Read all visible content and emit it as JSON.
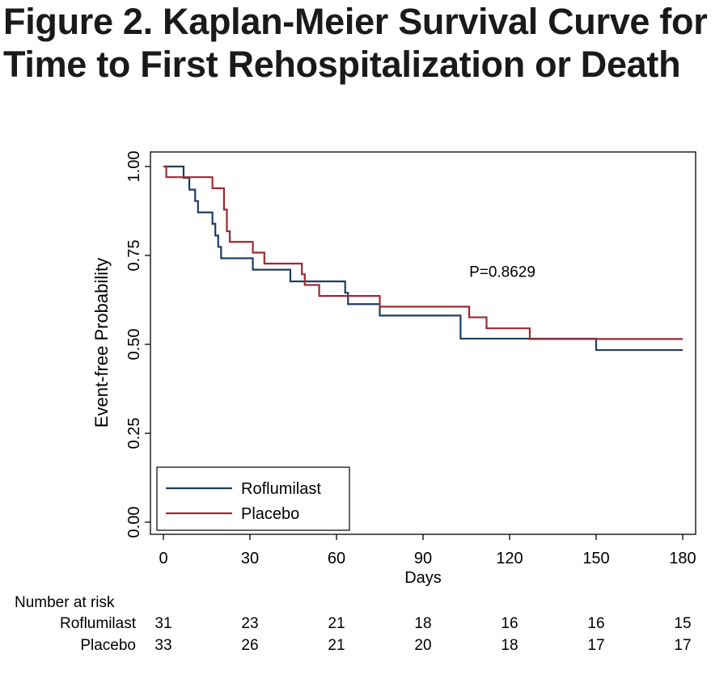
{
  "chart_data": {
    "type": "line",
    "title": "Figure 2. Kaplan-Meier Survival Curve for Time to First Rehospitalization or Death",
    "xlabel": "Days",
    "ylabel": "Event-free Probability",
    "xlim": [
      0,
      180
    ],
    "ylim": [
      0,
      1
    ],
    "x_ticks": [
      0,
      30,
      60,
      90,
      120,
      150,
      180
    ],
    "y_ticks": [
      "0.00",
      "0.25",
      "0.50",
      "0.75",
      "1.00"
    ],
    "y_tick_values": [
      0,
      0.25,
      0.5,
      0.75,
      1.0
    ],
    "grid": false,
    "step": "post",
    "legend_position": "bottom-left",
    "annotation": "P=0.8629",
    "annotation_at": [
      106,
      0.69
    ],
    "series": [
      {
        "name": "Roflumilast",
        "color": "#1f3d63",
        "x": [
          0,
          6,
          7,
          9,
          11,
          12,
          16,
          17,
          18,
          19,
          20,
          31,
          44,
          63,
          64,
          75,
          103,
          150,
          180
        ],
        "y": [
          1.0,
          1.0,
          0.968,
          0.935,
          0.903,
          0.871,
          0.871,
          0.839,
          0.806,
          0.774,
          0.742,
          0.71,
          0.677,
          0.645,
          0.613,
          0.581,
          0.516,
          0.484,
          0.484
        ]
      },
      {
        "name": "Placebo",
        "color": "#9b2a33",
        "x": [
          0,
          1,
          16,
          17,
          21,
          22,
          23,
          31,
          35,
          48,
          49,
          54,
          75,
          106,
          112,
          127,
          150,
          180
        ],
        "y": [
          1.0,
          0.97,
          0.97,
          0.939,
          0.879,
          0.818,
          0.788,
          0.758,
          0.727,
          0.697,
          0.667,
          0.636,
          0.606,
          0.576,
          0.545,
          0.515,
          0.515,
          0.515
        ]
      }
    ],
    "risk_table": {
      "header": "Number at risk",
      "times": [
        0,
        30,
        60,
        90,
        120,
        150,
        180
      ],
      "rows": [
        {
          "name": "Roflumilast",
          "values": [
            31,
            23,
            21,
            18,
            16,
            16,
            15
          ]
        },
        {
          "name": "Placebo",
          "values": [
            33,
            26,
            21,
            20,
            18,
            17,
            17
          ]
        }
      ]
    }
  }
}
